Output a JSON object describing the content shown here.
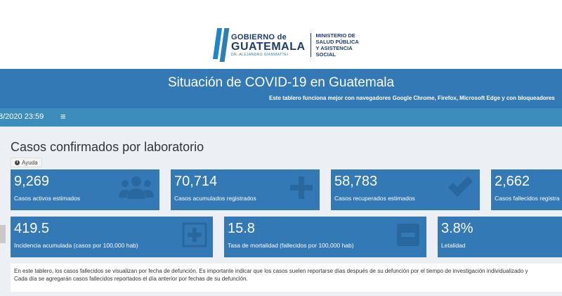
{
  "logo": {
    "line1": "GOBIERNO de",
    "line2": "GUATEMALA",
    "line3": "DR. ALEJANDRO GIAMMATTEI",
    "ministry": [
      "MINISTERIO DE",
      "SALUD PÚBLICA",
      "Y ASISTENCIA",
      "SOCIAL"
    ]
  },
  "header": {
    "title": "Situación de COVID-19 en Guatemala",
    "subtitle": "Este tablero funciona mejor con navegadores Google Chrome, Firefox, Microsoft Edge y con bloqueadores"
  },
  "topbar": {
    "date": "8/2020 23:59",
    "menu_icon": "≡"
  },
  "section": {
    "title": "Casos confirmados por laboratorio",
    "help_label": "Ayuda"
  },
  "boxes_row1": [
    {
      "value": "9,269",
      "label": "Casos activos estimados",
      "icon": "users-icon"
    },
    {
      "value": "70,714",
      "label": "Casos acumulados registrados",
      "icon": "plus-icon"
    },
    {
      "value": "58,783",
      "label": "Casos recuperados estimados",
      "icon": "check-icon"
    },
    {
      "value": "2,662",
      "label": "Casos fallecidos registra"
    }
  ],
  "boxes_row2": [
    {
      "value": "419.5",
      "label": "Incidencia acumulada (casos por 100,000 hab)",
      "icon": "plus-square-icon"
    },
    {
      "value": "15.8",
      "label": "Tasa de mortalidad (fallecidos por 100,000 hab)",
      "icon": "minus-square-icon"
    },
    {
      "value": "3.8%",
      "label": "Letalidad"
    }
  ],
  "note": {
    "line1": "En este tablero, los casos fallecidos se visualizan por fecha de defunción. Es importante indicar que los casos suelen reportarse días después de su defunción por el tiempo de investigación individualizado y",
    "line2": "Cada día se agregarán casos fallecidos reportados el día anterior por fechas de su defunción."
  },
  "colors": {
    "primary": "#3379b5",
    "topbar": "#3c8dbc",
    "background": "#ecf0f5"
  }
}
